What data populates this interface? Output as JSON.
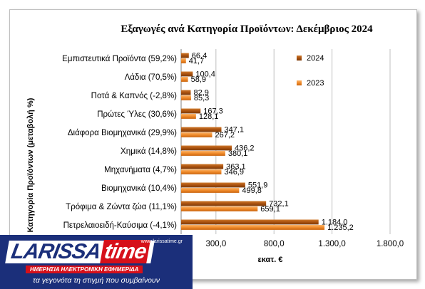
{
  "chart_data": {
    "type": "bar",
    "orientation": "horizontal",
    "title": "Εξαγωγές ανά Κατηγορία Προϊόντων: Δεκέμβριος 2024",
    "xlabel": "εκατ. €",
    "ylabel": "Κατηγορία Προϊόντων (μεταβολή %)",
    "categories": [
      "Εμπιστευτικά Προϊόντα (59,2%)",
      "Λάδια (70,5%)",
      "Ποτά & Καπνός (-2,8%)",
      "Πρώτες Ύλες (30,6%)",
      "Διάφορα Βιομηχανικά (29,9%)",
      "Χημικά (14,8%)",
      "Μηχανήματα (4,7%)",
      "Βιομηχανικά (10,4%)",
      "Τρόφιμα & Ζώντα ζώα (11,1%)",
      "Πετρελαιοειδή-Καύσιμα (-4,1%)"
    ],
    "series": [
      {
        "name": "2024",
        "color": "#b35a12",
        "values": [
          66.4,
          100.4,
          82.9,
          167.3,
          347.1,
          436.2,
          363.1,
          551.9,
          732.1,
          1184.0
        ],
        "labels": [
          "66,4",
          "100,4",
          "82,9",
          "167,3",
          "347,1",
          "436,2",
          "363,1",
          "551,9",
          "732,1",
          "1.184,0"
        ]
      },
      {
        "name": "2023",
        "color": "#f08a2a",
        "values": [
          41.7,
          58.9,
          85.3,
          128.1,
          267.2,
          380.1,
          346.9,
          499.8,
          659.1,
          1235.2
        ],
        "labels": [
          "41,7",
          "58,9",
          "85,3",
          "128,1",
          "267,2",
          "380,1",
          "346,9",
          "499,8",
          "659,1",
          "1.235,2"
        ]
      }
    ],
    "xlim": [
      0,
      1800
    ],
    "xticks": [
      300,
      800,
      1300,
      1800
    ],
    "xtick_labels": [
      "300,0",
      "800,0",
      "1.300,0",
      "1.800,0"
    ],
    "grid": true,
    "legend_position": "right"
  },
  "logo": {
    "word": "LARISSA",
    "word2": "time",
    "url": "www.larissatime.gr",
    "subtitle": "ΗΜΕΡΗΣΙΑ ΗΛΕΚΤΡΟΝΙΚΗ ΕΦΗΜΕΡΙΔΑ",
    "tagline": "τα γεγονότα τη στιγμή που συμβαίνουν"
  }
}
